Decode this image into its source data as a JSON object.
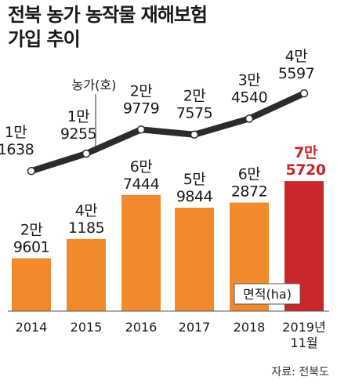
{
  "title_line1": "전북 농가 농작물 재해보험",
  "title_line2": "가입 추이",
  "source": "자료: 전북도",
  "colors": {
    "bar": "#f08a2d",
    "bar_highlight": "#c8282c",
    "line": "#2b2b2b",
    "point_fill": "#ffffff",
    "label_highlight": "#c8282c"
  },
  "chart_data": {
    "type": "bar",
    "categories": [
      "2014",
      "2015",
      "2016",
      "2017",
      "2018",
      "2019년 11월"
    ],
    "category_lines": [
      [
        "2014"
      ],
      [
        "2015"
      ],
      [
        "2016"
      ],
      [
        "2017"
      ],
      [
        "2018"
      ],
      [
        "2019년",
        "11월"
      ]
    ],
    "series": [
      {
        "name": "면적(ha)",
        "type": "bar",
        "values": [
          29601,
          41185,
          67444,
          59844,
          62872,
          75720
        ],
        "labels": [
          [
            "2만",
            "9601"
          ],
          [
            "4만",
            "1185"
          ],
          [
            "6만",
            "7444"
          ],
          [
            "5만",
            "9844"
          ],
          [
            "6만",
            "2872"
          ],
          [
            "7만",
            "5720"
          ]
        ]
      },
      {
        "name": "농가(호)",
        "type": "line",
        "values": [
          11638,
          19255,
          29779,
          27575,
          34540,
          45597
        ],
        "labels": [
          [
            "1만",
            "1638"
          ],
          [
            "1만",
            "9255"
          ],
          [
            "2만",
            "9779"
          ],
          [
            "2만",
            "7575"
          ],
          [
            "3만",
            "4540"
          ],
          [
            "4만",
            "5597"
          ]
        ]
      }
    ]
  }
}
